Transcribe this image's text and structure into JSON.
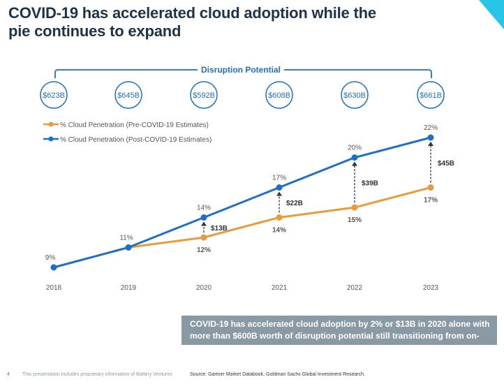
{
  "title_line1": "COVID-19 has accelerated cloud adoption while the",
  "title_line2": "pie continues to expand",
  "colors": {
    "pre": "#e89a3c",
    "post": "#1f6fc9",
    "navy": "#1f3347",
    "callout_bg": "#8a9aa4",
    "accent": "#29c5e6"
  },
  "chart_data": {
    "type": "line",
    "x": [
      "2018",
      "2019",
      "2020",
      "2021",
      "2022",
      "2023"
    ],
    "ylim": [
      8,
      23
    ],
    "series": [
      {
        "name": "% Cloud Penetration (Pre-COVID-19 Estimates)",
        "color": "#e89a3c",
        "values": [
          9,
          11,
          12,
          14,
          15,
          17
        ],
        "labels": [
          "",
          "",
          "12%",
          "14%",
          "15%",
          "17%"
        ]
      },
      {
        "name": "% Cloud Penetration (Post-COVID-19 Estimates)",
        "color": "#1f6fc9",
        "values": [
          9,
          11,
          14,
          17,
          20,
          22
        ],
        "labels": [
          "9%",
          "11%",
          "14%",
          "17%",
          "20%",
          "22%"
        ]
      }
    ],
    "gap_labels": [
      "",
      "",
      "$13B",
      "$22B",
      "$39B",
      "$45B"
    ],
    "disruption_title": "Disruption Potential",
    "disruption_values": [
      "$623B",
      "$645B",
      "$592B",
      "$608B",
      "$630B",
      "$661B"
    ],
    "legend_position": "top-left"
  },
  "callout_text": "COVID-19 has accelerated cloud adoption by 2% or $13B in 2020 alone with more than $600B worth of disruption potential still transitioning from on-prem.",
  "footer": {
    "page_number": "4",
    "note": "This presentation includes proprietary information of Battery Ventures",
    "source": "Source: Gartner Market Databook, Goldman Sachs Global Investment Research."
  }
}
